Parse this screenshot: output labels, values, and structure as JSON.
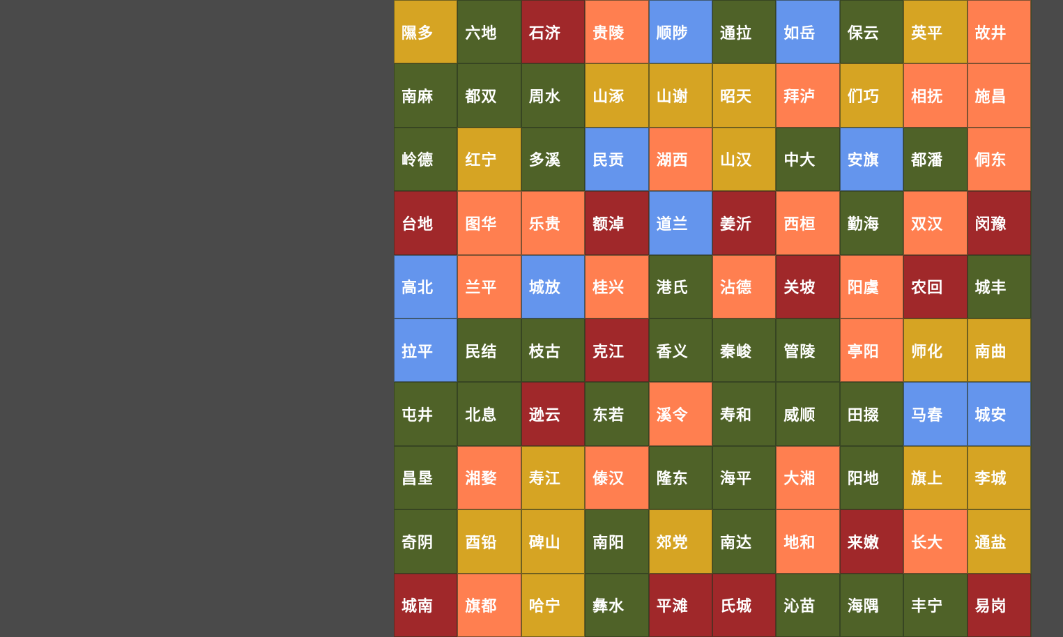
{
  "board": {
    "rows": [
      [
        {
          "text": "隰多",
          "color": "#d6a423"
        },
        {
          "text": "六地",
          "color": "#4f6228"
        },
        {
          "text": "石济",
          "color": "#a0282a"
        },
        {
          "text": "贵陵",
          "color": "#ff7f50"
        },
        {
          "text": "顺陟",
          "color": "#6495ed"
        },
        {
          "text": "通拉",
          "color": "#4f6228"
        },
        {
          "text": "如岳",
          "color": "#6495ed"
        },
        {
          "text": "保云",
          "color": "#4f6228"
        },
        {
          "text": "英平",
          "color": "#d6a423"
        },
        {
          "text": "故井",
          "color": "#ff7f50"
        }
      ],
      [
        {
          "text": "南麻",
          "color": "#4f6228"
        },
        {
          "text": "都双",
          "color": "#4f6228"
        },
        {
          "text": "周水",
          "color": "#4f6228"
        },
        {
          "text": "山涿",
          "color": "#d6a423"
        },
        {
          "text": "山谢",
          "color": "#d6a423"
        },
        {
          "text": "昭天",
          "color": "#d6a423"
        },
        {
          "text": "拜泸",
          "color": "#ff7f50"
        },
        {
          "text": "们巧",
          "color": "#d6a423"
        },
        {
          "text": "相抚",
          "color": "#ff7f50"
        },
        {
          "text": "施昌",
          "color": "#ff7f50"
        }
      ],
      [
        {
          "text": "岭德",
          "color": "#4f6228"
        },
        {
          "text": "红宁",
          "color": "#d6a423"
        },
        {
          "text": "多溪",
          "color": "#4f6228"
        },
        {
          "text": "民贡",
          "color": "#6495ed"
        },
        {
          "text": "湖西",
          "color": "#ff7f50"
        },
        {
          "text": "山汉",
          "color": "#d6a423"
        },
        {
          "text": "中大",
          "color": "#4f6228"
        },
        {
          "text": "安旗",
          "color": "#6495ed"
        },
        {
          "text": "都潘",
          "color": "#4f6228"
        },
        {
          "text": "侗东",
          "color": "#ff7f50"
        }
      ],
      [
        {
          "text": "台地",
          "color": "#a0282a"
        },
        {
          "text": "图华",
          "color": "#ff7f50"
        },
        {
          "text": "乐贵",
          "color": "#ff7f50"
        },
        {
          "text": "额淖",
          "color": "#a0282a"
        },
        {
          "text": "道兰",
          "color": "#6495ed"
        },
        {
          "text": "姜沂",
          "color": "#a0282a"
        },
        {
          "text": "西桓",
          "color": "#ff7f50"
        },
        {
          "text": "勤海",
          "color": "#4f6228"
        },
        {
          "text": "双汉",
          "color": "#ff7f50"
        },
        {
          "text": "闵豫",
          "color": "#a0282a"
        }
      ],
      [
        {
          "text": "高北",
          "color": "#6495ed"
        },
        {
          "text": "兰平",
          "color": "#ff7f50"
        },
        {
          "text": "城放",
          "color": "#6495ed"
        },
        {
          "text": "桂兴",
          "color": "#ff7f50"
        },
        {
          "text": "港氏",
          "color": "#4f6228"
        },
        {
          "text": "沾德",
          "color": "#ff7f50"
        },
        {
          "text": "关坡",
          "color": "#a0282a"
        },
        {
          "text": "阳虞",
          "color": "#ff7f50"
        },
        {
          "text": "农回",
          "color": "#a0282a"
        },
        {
          "text": "城丰",
          "color": "#4f6228"
        }
      ],
      [
        {
          "text": "拉平",
          "color": "#6495ed"
        },
        {
          "text": "民结",
          "color": "#4f6228"
        },
        {
          "text": "枝古",
          "color": "#4f6228"
        },
        {
          "text": "克江",
          "color": "#a0282a"
        },
        {
          "text": "香义",
          "color": "#4f6228"
        },
        {
          "text": "秦峻",
          "color": "#4f6228"
        },
        {
          "text": "管陵",
          "color": "#4f6228"
        },
        {
          "text": "亭阳",
          "color": "#ff7f50"
        },
        {
          "text": "师化",
          "color": "#d6a423"
        },
        {
          "text": "南曲",
          "color": "#d6a423"
        }
      ],
      [
        {
          "text": "屯井",
          "color": "#4f6228"
        },
        {
          "text": "北息",
          "color": "#4f6228"
        },
        {
          "text": "逊云",
          "color": "#a0282a"
        },
        {
          "text": "东若",
          "color": "#4f6228"
        },
        {
          "text": "溪令",
          "color": "#ff7f50"
        },
        {
          "text": "寿和",
          "color": "#4f6228"
        },
        {
          "text": "威顺",
          "color": "#4f6228"
        },
        {
          "text": "田掇",
          "color": "#4f6228"
        },
        {
          "text": "马春",
          "color": "#6495ed"
        },
        {
          "text": "城安",
          "color": "#6495ed"
        }
      ],
      [
        {
          "text": "昌垦",
          "color": "#4f6228"
        },
        {
          "text": "湘婺",
          "color": "#ff7f50"
        },
        {
          "text": "寿江",
          "color": "#d6a423"
        },
        {
          "text": "傣汉",
          "color": "#ff7f50"
        },
        {
          "text": "隆东",
          "color": "#4f6228"
        },
        {
          "text": "海平",
          "color": "#4f6228"
        },
        {
          "text": "大湘",
          "color": "#ff7f50"
        },
        {
          "text": "阳地",
          "color": "#4f6228"
        },
        {
          "text": "旗上",
          "color": "#d6a423"
        },
        {
          "text": "李城",
          "color": "#d6a423"
        }
      ],
      [
        {
          "text": "奇阴",
          "color": "#4f6228"
        },
        {
          "text": "酉铅",
          "color": "#d6a423"
        },
        {
          "text": "碑山",
          "color": "#d6a423"
        },
        {
          "text": "南阳",
          "color": "#4f6228"
        },
        {
          "text": "郊党",
          "color": "#d6a423"
        },
        {
          "text": "南达",
          "color": "#4f6228"
        },
        {
          "text": "地和",
          "color": "#ff7f50"
        },
        {
          "text": "来嫩",
          "color": "#a0282a"
        },
        {
          "text": "长大",
          "color": "#ff7f50"
        },
        {
          "text": "通盐",
          "color": "#d6a423"
        }
      ],
      [
        {
          "text": "城南",
          "color": "#a0282a"
        },
        {
          "text": "旗都",
          "color": "#ff7f50"
        },
        {
          "text": "哈宁",
          "color": "#d6a423"
        },
        {
          "text": "彝水",
          "color": "#4f6228"
        },
        {
          "text": "平滩",
          "color": "#a0282a"
        },
        {
          "text": "氏城",
          "color": "#a0282a"
        },
        {
          "text": "沁苗",
          "color": "#4f6228"
        },
        {
          "text": "海隅",
          "color": "#4f6228"
        },
        {
          "text": "丰宁",
          "color": "#4f6228"
        },
        {
          "text": "易岗",
          "color": "#a0282a"
        }
      ]
    ]
  }
}
